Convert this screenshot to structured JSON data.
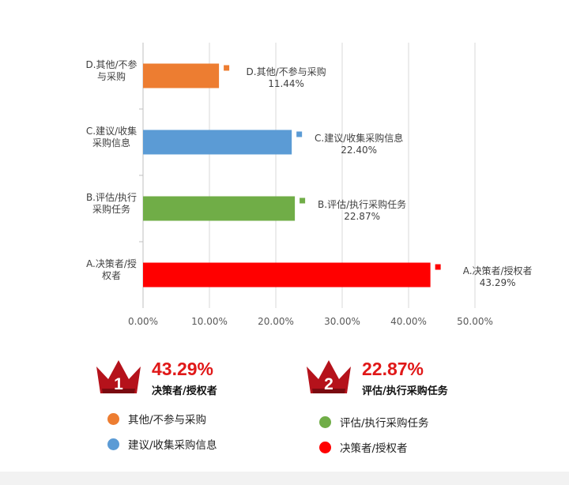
{
  "chart_data": {
    "type": "bar",
    "orientation": "horizontal",
    "categories": [
      "A.决策者/授权者",
      "B.评估/执行采购任务",
      "C.建议/收集采购信息",
      "D.其他/不参与采购"
    ],
    "axis_category_labels": [
      [
        "A.决策者/授",
        "权者"
      ],
      [
        "B.评估/执行",
        "采购任务"
      ],
      [
        "C.建议/收集",
        "采购信息"
      ],
      [
        "D.其他/不参",
        "与采购"
      ]
    ],
    "values": [
      43.29,
      22.87,
      22.4,
      11.44
    ],
    "data_labels": [
      {
        "name": "A.决策者/授权者",
        "value": "43.29%"
      },
      {
        "name": "B.评估/执行采购任务",
        "value": "22.87%"
      },
      {
        "name": "C.建议/收集采购信息",
        "value": "22.40%"
      },
      {
        "name": "D.其他/不参与采购",
        "value": "11.44%"
      }
    ],
    "colors": [
      "#ff0000",
      "#70ad47",
      "#5b9bd5",
      "#ed7d31"
    ],
    "xlim": [
      0,
      50
    ],
    "xticks": [
      "0.00%",
      "10.00%",
      "20.00%",
      "30.00%",
      "40.00%",
      "50.00%"
    ],
    "grid": true
  },
  "badges": [
    {
      "rank": "1",
      "percent": "43.29%",
      "label": "决策者/授权者"
    },
    {
      "rank": "2",
      "percent": "22.87%",
      "label": "评估/执行采购任务"
    }
  ],
  "legend": [
    {
      "label": "其他/不参与采购",
      "color": "#ed7d31"
    },
    {
      "label": "评估/执行采购任务",
      "color": "#70ad47"
    },
    {
      "label": "建议/收集采购信息",
      "color": "#5b9bd5"
    },
    {
      "label": "决策者/授权者",
      "color": "#ff0000"
    }
  ]
}
